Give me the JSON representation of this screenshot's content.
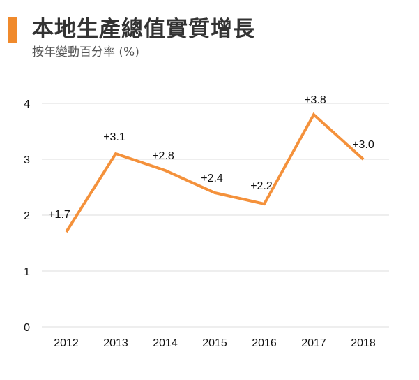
{
  "header": {
    "title": "本地生產總值實質增長",
    "subtitle": "按年變動百分率 (%)",
    "accent_color": "#f08a2c"
  },
  "chart_data": {
    "type": "line",
    "title": "本地生產總值實質增長",
    "subtitle": "按年變動百分率 (%)",
    "xlabel": "",
    "ylabel": "",
    "categories": [
      "2012",
      "2013",
      "2014",
      "2015",
      "2016",
      "2017",
      "2018"
    ],
    "series": [
      {
        "values": [
          1.7,
          3.1,
          2.8,
          2.4,
          2.2,
          3.8,
          3.0
        ],
        "labels": [
          "+1.7",
          "+3.1",
          "+2.8",
          "+2.4",
          "+2.2",
          "+3.8",
          "+3.0"
        ],
        "color": "#f4913b"
      }
    ],
    "ylim": [
      0,
      4
    ],
    "yticks": [
      "0",
      "1",
      "2",
      "3",
      "4"
    ],
    "grid": true,
    "legend": "none",
    "grid_color": "#dcdcdc"
  }
}
